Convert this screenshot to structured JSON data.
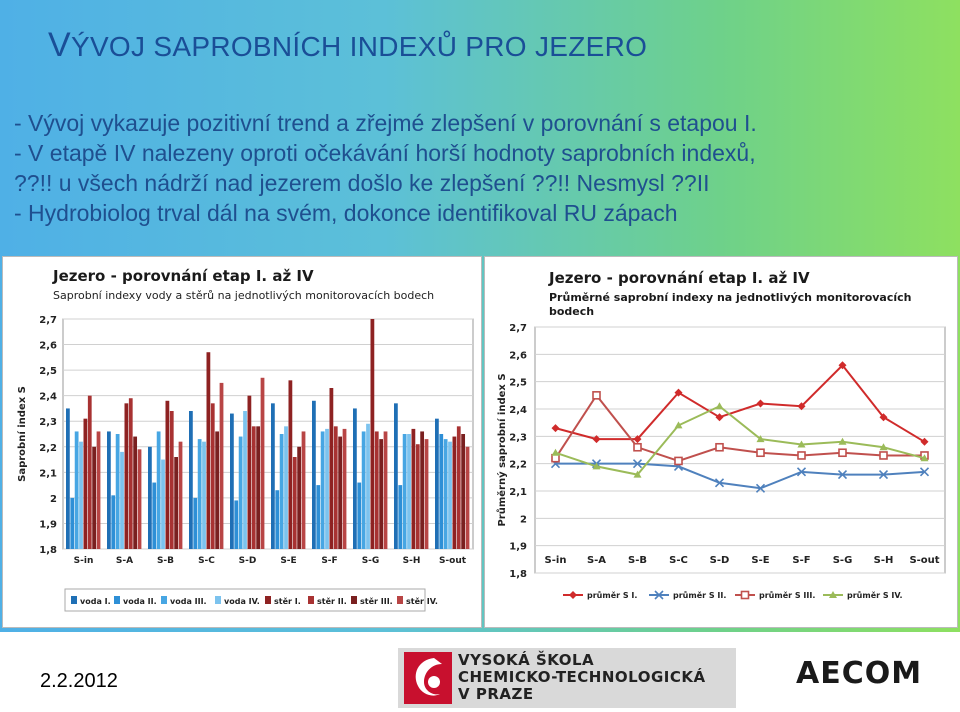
{
  "slide": {
    "title_initial": "V",
    "title_rest": "ÝVOJ SAPROBNÍCH INDEXŮ PRO JEZERO",
    "bullets": [
      "- Vývoj vykazuje pozitivní trend a zřejmé zlepšení v porovnání s etapou I.",
      "- V etapě IV nalezeny oproti očekávání horší hodnoty saprobních indexů,",
      "??!! u všech nádrží nad jezerem došlo ke zlepšení ??!!  Nesmysl ??II",
      "- Hydrobiolog trval dál na svém, dokonce identifikoval RU zápach"
    ],
    "date": "2.2.2012",
    "logo_lines": [
      "VYSOKÁ ŠKOLA",
      "CHEMICKO-TECHNOLOGICKÁ",
      "V PRAZE"
    ],
    "logo2": "AECOM"
  },
  "chart_data": [
    {
      "type": "bar",
      "title": "Jezero - porovnání etap I. až IV",
      "subtitle": "Saprobní indexy vody a stěrů na jednotlivých monitorovacích bodech",
      "ylabel": "Saprobní index S",
      "ylim": [
        1.8,
        2.7
      ],
      "yticks": [
        "1,8",
        "1,9",
        "2",
        "2,1",
        "2,2",
        "2,3",
        "2,4",
        "2,5",
        "2,6",
        "2,7"
      ],
      "categories": [
        "S-in",
        "S-A",
        "S-B",
        "S-C",
        "S-D",
        "S-E",
        "S-F",
        "S-G",
        "S-H",
        "S-out"
      ],
      "legend_position": "bottom",
      "series": [
        {
          "name": "voda I.",
          "color": "#1f6fb5",
          "values": [
            2.35,
            2.26,
            2.2,
            2.34,
            2.33,
            2.37,
            2.38,
            2.35,
            2.37,
            2.31
          ]
        },
        {
          "name": "voda II.",
          "color": "#2e8fd6",
          "values": [
            2.0,
            2.01,
            2.06,
            2.0,
            1.99,
            2.03,
            2.05,
            2.06,
            2.05,
            2.25
          ]
        },
        {
          "name": "voda III.",
          "color": "#47a6e3",
          "values": [
            2.26,
            2.25,
            2.26,
            2.23,
            2.24,
            2.25,
            2.26,
            2.26,
            2.25,
            2.23
          ]
        },
        {
          "name": "voda IV.",
          "color": "#7cc3ee",
          "values": [
            2.22,
            2.18,
            2.15,
            2.22,
            2.34,
            2.28,
            2.27,
            2.29,
            2.25,
            2.22
          ]
        },
        {
          "name": "stěr I.",
          "color": "#8e2222",
          "values": [
            2.31,
            2.37,
            2.38,
            2.57,
            2.4,
            2.46,
            2.43,
            2.7,
            2.27,
            2.24
          ]
        },
        {
          "name": "stěr II.",
          "color": "#a83232",
          "values": [
            2.4,
            2.39,
            2.34,
            2.37,
            2.28,
            2.16,
            2.28,
            2.26,
            2.21,
            2.28
          ]
        },
        {
          "name": "stěr III.",
          "color": "#7a2020",
          "values": [
            2.2,
            2.24,
            2.16,
            2.26,
            2.28,
            2.2,
            2.24,
            2.23,
            2.26,
            2.25
          ]
        },
        {
          "name": "stěr IV.",
          "color": "#b84545",
          "values": [
            2.26,
            2.19,
            2.22,
            2.45,
            2.47,
            2.26,
            2.27,
            2.26,
            2.23,
            2.2
          ]
        }
      ]
    },
    {
      "type": "line",
      "title": "Jezero - porovnání etap I. až IV",
      "subtitle_lines": [
        "Průměrné saprobní indexy na jednotlivých monitorovacích",
        "bodech"
      ],
      "ylabel": "Průměrný saprobní index S",
      "ylim": [
        1.8,
        2.7
      ],
      "yticks": [
        "1,8",
        "1,9",
        "2",
        "2,1",
        "2,2",
        "2,3",
        "2,4",
        "2,5",
        "2,6",
        "2,7"
      ],
      "categories": [
        "S-in",
        "S-A",
        "S-B",
        "S-C",
        "S-D",
        "S-E",
        "S-F",
        "S-G",
        "S-H",
        "S-out"
      ],
      "legend_position": "bottom",
      "series": [
        {
          "name": "průměr S I.",
          "color": "#d02b2b",
          "marker": "diamond",
          "values": [
            2.33,
            2.29,
            2.29,
            2.46,
            2.37,
            2.42,
            2.41,
            2.56,
            2.37,
            2.28
          ]
        },
        {
          "name": "průměr S II.",
          "color": "#4f81bd",
          "marker": "x",
          "values": [
            2.2,
            2.2,
            2.2,
            2.19,
            2.13,
            2.11,
            2.17,
            2.16,
            2.16,
            2.17
          ]
        },
        {
          "name": "průměr S III.",
          "color": "#c0504d",
          "marker": "square",
          "values": [
            2.22,
            2.45,
            2.26,
            2.21,
            2.26,
            2.24,
            2.23,
            2.24,
            2.23,
            2.23
          ]
        },
        {
          "name": "průměr S IV.",
          "color": "#9bbb59",
          "marker": "triangle",
          "values": [
            2.24,
            2.19,
            2.16,
            2.34,
            2.41,
            2.29,
            2.27,
            2.28,
            2.26,
            2.22
          ]
        }
      ]
    }
  ]
}
